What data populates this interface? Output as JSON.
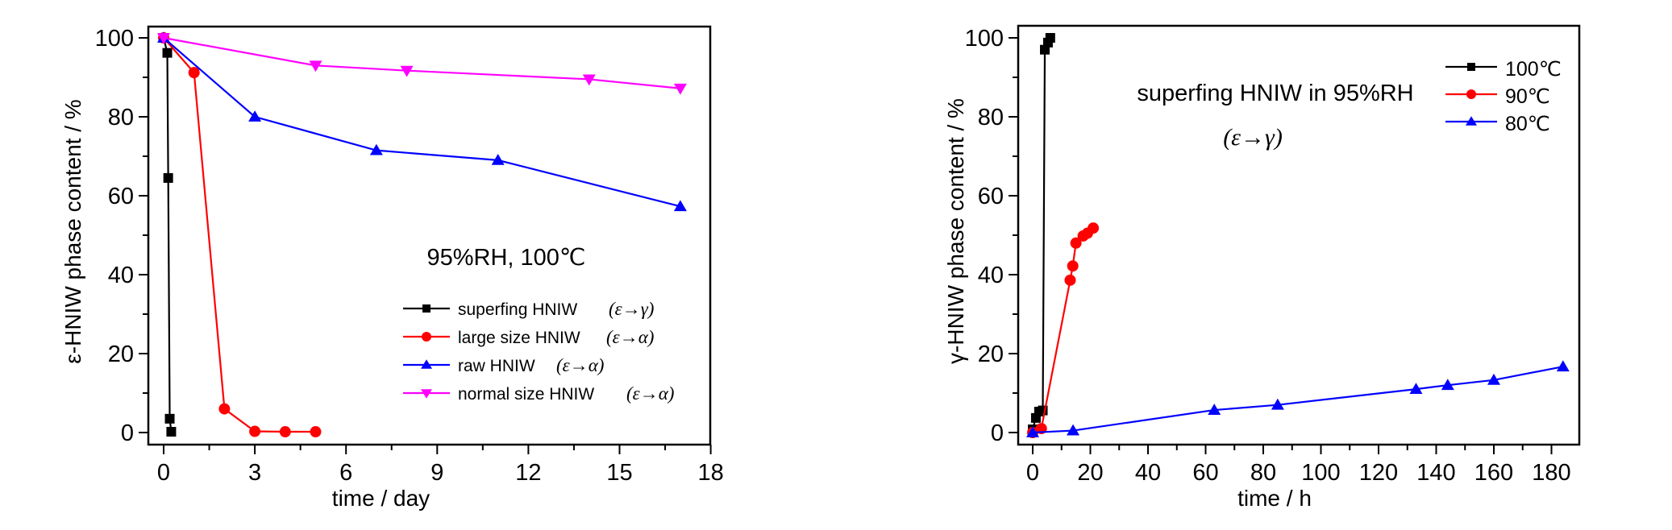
{
  "chart_data": [
    {
      "type": "line",
      "xlabel": "time / day",
      "ylabel": "ε-HNIW phase content / %",
      "xlim": [
        -0.5,
        18
      ],
      "ylim": [
        -3,
        103
      ],
      "xticks": [
        0,
        3,
        6,
        9,
        12,
        15,
        18
      ],
      "yticks": [
        0,
        20,
        40,
        60,
        80,
        100
      ],
      "grid": false,
      "legend_title": "95%RH, 100℃",
      "legend_placement": "bottom-right",
      "series": [
        {
          "name": "superfing HNIW",
          "transition": "(ε→γ)",
          "color": "#000000",
          "marker": "square",
          "x": [
            0,
            0.12,
            0.15,
            0.2,
            0.25
          ],
          "y": [
            100,
            96.2,
            64.5,
            3.5,
            0.2
          ]
        },
        {
          "name": "large size HNIW",
          "transition": "(ε→α)",
          "color": "#ff0000",
          "marker": "circle",
          "x": [
            0,
            1,
            2,
            3,
            4,
            5
          ],
          "y": [
            100,
            91.2,
            6,
            0.3,
            0.2,
            0.2
          ]
        },
        {
          "name": "raw HNIW",
          "transition": "(ε→α)",
          "color": "#0000ff",
          "marker": "triangle-up",
          "x": [
            0,
            3,
            7,
            11,
            17
          ],
          "y": [
            100,
            80,
            71.5,
            69,
            57.3
          ]
        },
        {
          "name": "normal size HNIW",
          "transition": "(ε→α)",
          "color": "#ff00ff",
          "marker": "triangle-down",
          "x": [
            0,
            5,
            8,
            14,
            17
          ],
          "y": [
            100,
            93,
            91.7,
            89.5,
            87.2
          ]
        }
      ]
    },
    {
      "type": "line",
      "xlabel": "time / h",
      "ylabel": "γ-HNIW phase content / %",
      "xlim": [
        -4,
        190
      ],
      "ylim": [
        -3,
        103
      ],
      "xticks": [
        0,
        20,
        40,
        60,
        80,
        100,
        120,
        140,
        160,
        180
      ],
      "yticks": [
        0,
        20,
        40,
        60,
        80,
        100
      ],
      "grid": false,
      "annotation": [
        "superfing HNIW in 95%RH",
        "(ε→γ)"
      ],
      "legend_placement": "top-right",
      "series": [
        {
          "name": "100℃",
          "color": "#000000",
          "marker": "square",
          "x": [
            0,
            1.1,
            2.2,
            3.5,
            4.2,
            5.3,
            6.1
          ],
          "y": [
            0.8,
            3.7,
            5.3,
            5.6,
            97,
            98.8,
            100
          ]
        },
        {
          "name": "90℃",
          "color": "#ff0000",
          "marker": "circle",
          "x": [
            0,
            3,
            13,
            13.9,
            15,
            17.5,
            19,
            21
          ],
          "y": [
            0,
            1,
            38.6,
            42.2,
            48,
            49.8,
            50.5,
            51.8
          ]
        },
        {
          "name": "80℃",
          "color": "#0000ff",
          "marker": "triangle-up",
          "x": [
            0,
            14,
            63,
            85,
            133,
            144,
            160,
            184
          ],
          "y": [
            0,
            0.5,
            5.7,
            7,
            11,
            12,
            13.3,
            16.7
          ]
        }
      ]
    }
  ]
}
